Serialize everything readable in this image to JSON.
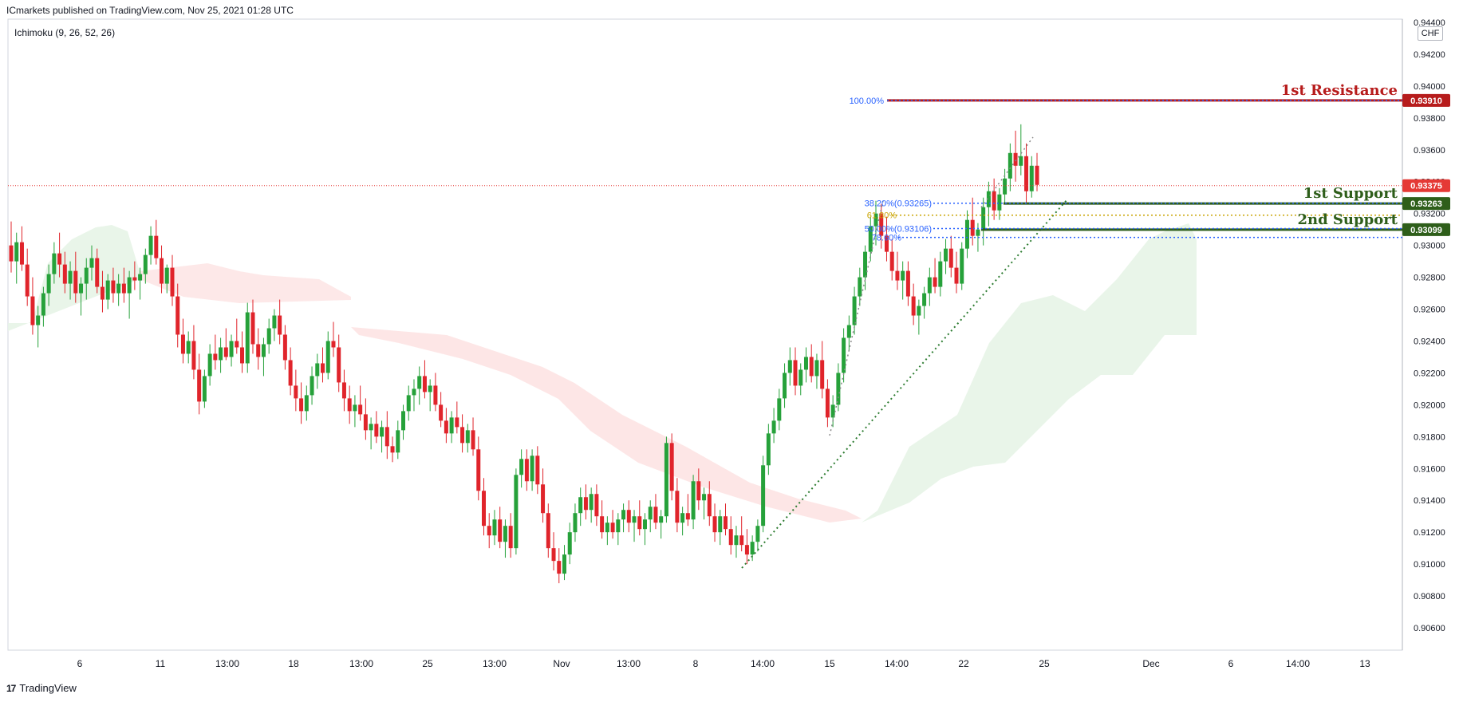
{
  "header": {
    "published": "ICmarkets published on TradingView.com, Nov 25, 2021 01:28 UTC"
  },
  "indicator": {
    "label": "Ichimoku (9, 26, 52, 26)"
  },
  "currency_button": "CHF",
  "footer": {
    "logo": "17",
    "brand": "TradingView"
  },
  "colors": {
    "up": "#26a13a",
    "down": "#e0242b",
    "resistance": "#b71c1c",
    "support": "#2e5e1a",
    "fib": "#2962ff",
    "fib_618": "#c9a300",
    "kumo_bull": "#e7f4e7",
    "kumo_bear": "#fde2e2",
    "current_price": "#e53935"
  },
  "chart_data": {
    "type": "candlestick",
    "symbol_quote": "CHF",
    "ylim": [
      0.9046,
      0.9442
    ],
    "y_ticks": [
      "0.90600",
      "0.90800",
      "0.91000",
      "0.91200",
      "0.91400",
      "0.91600",
      "0.91800",
      "0.92000",
      "0.92200",
      "0.92400",
      "0.92600",
      "0.92800",
      "0.93000",
      "0.93200",
      "0.93400",
      "0.93600",
      "0.93800",
      "0.94000",
      "0.94200",
      "0.94400"
    ],
    "x_ticks": [
      "6",
      "11",
      "13:00",
      "18",
      "13:00",
      "25",
      "13:00",
      "Nov",
      "13:00",
      "8",
      "14:00",
      "15",
      "14:00",
      "22",
      "25",
      "Dec",
      "6",
      "14:00",
      "13"
    ],
    "levels": [
      {
        "name": "1st Resistance",
        "price": 0.9391,
        "label": "0.93910",
        "kind": "resistance"
      },
      {
        "name": "1st Support",
        "price": 0.93263,
        "label": "0.93263",
        "kind": "support"
      },
      {
        "name": "2nd Support",
        "price": 0.93099,
        "label": "0.93099",
        "kind": "support"
      }
    ],
    "current_price": {
      "value": 0.93375,
      "label": "0.93375"
    },
    "fib_levels": [
      {
        "label": "100.00%",
        "price": 0.9391
      },
      {
        "label": "38.20%(0.93265)",
        "price": 0.93265
      },
      {
        "label": "61.80%",
        "price": 0.9319
      },
      {
        "label": "50.00%(0.93106)",
        "price": 0.93106
      },
      {
        "label": "78.60%",
        "price": 0.9305
      }
    ],
    "candles": [
      [
        0.93,
        0.9315,
        0.9283,
        0.929
      ],
      [
        0.929,
        0.9308,
        0.9276,
        0.9302
      ],
      [
        0.9302,
        0.9312,
        0.9284,
        0.9288
      ],
      [
        0.9288,
        0.9298,
        0.9262,
        0.9268
      ],
      [
        0.9268,
        0.928,
        0.9244,
        0.925
      ],
      [
        0.925,
        0.9262,
        0.9236,
        0.9256
      ],
      [
        0.9256,
        0.9274,
        0.9249,
        0.927
      ],
      [
        0.927,
        0.9288,
        0.9262,
        0.9282
      ],
      [
        0.9282,
        0.9302,
        0.9276,
        0.9295
      ],
      [
        0.9295,
        0.9308,
        0.928,
        0.9288
      ],
      [
        0.9288,
        0.9296,
        0.927,
        0.9276
      ],
      [
        0.9276,
        0.929,
        0.9266,
        0.9284
      ],
      [
        0.9284,
        0.9296,
        0.9264,
        0.927
      ],
      [
        0.927,
        0.928,
        0.9256,
        0.9276
      ],
      [
        0.9276,
        0.9292,
        0.9266,
        0.9286
      ],
      [
        0.9286,
        0.93,
        0.9278,
        0.9292
      ],
      [
        0.9292,
        0.9298,
        0.927,
        0.9274
      ],
      [
        0.9274,
        0.9284,
        0.9258,
        0.9266
      ],
      [
        0.9266,
        0.9282,
        0.926,
        0.9278
      ],
      [
        0.9278,
        0.9286,
        0.9264,
        0.927
      ],
      [
        0.927,
        0.9282,
        0.9262,
        0.9276
      ],
      [
        0.9276,
        0.9286,
        0.9264,
        0.927
      ],
      [
        0.927,
        0.9284,
        0.9254,
        0.928
      ],
      [
        0.928,
        0.929,
        0.9272,
        0.9278
      ],
      [
        0.9278,
        0.9286,
        0.9266,
        0.9282
      ],
      [
        0.9282,
        0.9298,
        0.9276,
        0.9294
      ],
      [
        0.9294,
        0.9312,
        0.9288,
        0.9306
      ],
      [
        0.9306,
        0.9316,
        0.9288,
        0.9292
      ],
      [
        0.9292,
        0.93,
        0.927,
        0.9276
      ],
      [
        0.9276,
        0.9288,
        0.927,
        0.9286
      ],
      [
        0.9286,
        0.9294,
        0.9262,
        0.9268
      ],
      [
        0.9268,
        0.9276,
        0.9236,
        0.9244
      ],
      [
        0.9244,
        0.9254,
        0.9226,
        0.9232
      ],
      [
        0.9232,
        0.9246,
        0.9226,
        0.924
      ],
      [
        0.924,
        0.925,
        0.9216,
        0.9222
      ],
      [
        0.9222,
        0.9232,
        0.9194,
        0.9202
      ],
      [
        0.9202,
        0.9222,
        0.9198,
        0.9218
      ],
      [
        0.9218,
        0.9238,
        0.9212,
        0.9232
      ],
      [
        0.9232,
        0.9244,
        0.9222,
        0.9228
      ],
      [
        0.9228,
        0.9242,
        0.922,
        0.9236
      ],
      [
        0.9236,
        0.9248,
        0.9228,
        0.923
      ],
      [
        0.923,
        0.9244,
        0.9224,
        0.924
      ],
      [
        0.924,
        0.9254,
        0.9232,
        0.9236
      ],
      [
        0.9236,
        0.9246,
        0.922,
        0.9226
      ],
      [
        0.9226,
        0.9264,
        0.922,
        0.9258
      ],
      [
        0.9258,
        0.9266,
        0.9232,
        0.9238
      ],
      [
        0.9238,
        0.9248,
        0.9222,
        0.923
      ],
      [
        0.923,
        0.9242,
        0.9218,
        0.9238
      ],
      [
        0.9238,
        0.9254,
        0.9232,
        0.9248
      ],
      [
        0.9248,
        0.926,
        0.924,
        0.9256
      ],
      [
        0.9256,
        0.9266,
        0.9238,
        0.9244
      ],
      [
        0.9244,
        0.925,
        0.9222,
        0.9228
      ],
      [
        0.9228,
        0.9236,
        0.9206,
        0.9212
      ],
      [
        0.9212,
        0.9222,
        0.9196,
        0.9204
      ],
      [
        0.9204,
        0.9214,
        0.9188,
        0.9196
      ],
      [
        0.9196,
        0.9212,
        0.919,
        0.9206
      ],
      [
        0.9206,
        0.9224,
        0.92,
        0.9218
      ],
      [
        0.9218,
        0.9232,
        0.921,
        0.9226
      ],
      [
        0.9226,
        0.9236,
        0.9214,
        0.922
      ],
      [
        0.922,
        0.9246,
        0.9216,
        0.924
      ],
      [
        0.924,
        0.9252,
        0.923,
        0.9236
      ],
      [
        0.9236,
        0.9244,
        0.9208,
        0.9214
      ],
      [
        0.9214,
        0.9222,
        0.9196,
        0.9204
      ],
      [
        0.9204,
        0.9212,
        0.9188,
        0.9196
      ],
      [
        0.9196,
        0.9206,
        0.9186,
        0.92
      ],
      [
        0.92,
        0.9212,
        0.919,
        0.9194
      ],
      [
        0.9194,
        0.9204,
        0.9178,
        0.9184
      ],
      [
        0.9184,
        0.9192,
        0.9172,
        0.9188
      ],
      [
        0.9188,
        0.9196,
        0.9176,
        0.918
      ],
      [
        0.918,
        0.919,
        0.917,
        0.9186
      ],
      [
        0.9186,
        0.9196,
        0.9166,
        0.9174
      ],
      [
        0.9174,
        0.918,
        0.9164,
        0.917
      ],
      [
        0.917,
        0.919,
        0.9166,
        0.9184
      ],
      [
        0.9184,
        0.92,
        0.9178,
        0.9196
      ],
      [
        0.9196,
        0.9212,
        0.919,
        0.9206
      ],
      [
        0.9206,
        0.9216,
        0.9196,
        0.921
      ],
      [
        0.921,
        0.9224,
        0.92,
        0.9218
      ],
      [
        0.9218,
        0.9228,
        0.9204,
        0.9208
      ],
      [
        0.9208,
        0.9216,
        0.9196,
        0.9212
      ],
      [
        0.9212,
        0.922,
        0.9196,
        0.92
      ],
      [
        0.92,
        0.9208,
        0.9186,
        0.919
      ],
      [
        0.919,
        0.9198,
        0.9176,
        0.9182
      ],
      [
        0.9182,
        0.9196,
        0.9176,
        0.9192
      ],
      [
        0.9192,
        0.9202,
        0.9182,
        0.9186
      ],
      [
        0.9186,
        0.9194,
        0.917,
        0.9176
      ],
      [
        0.9176,
        0.9188,
        0.917,
        0.9184
      ],
      [
        0.9184,
        0.9192,
        0.9168,
        0.9172
      ],
      [
        0.9172,
        0.918,
        0.914,
        0.9146
      ],
      [
        0.9146,
        0.9154,
        0.9118,
        0.9124
      ],
      [
        0.9124,
        0.9132,
        0.911,
        0.9118
      ],
      [
        0.9118,
        0.9134,
        0.9112,
        0.9128
      ],
      [
        0.9128,
        0.9136,
        0.911,
        0.9114
      ],
      [
        0.9114,
        0.9128,
        0.9104,
        0.9124
      ],
      [
        0.9124,
        0.9132,
        0.9104,
        0.911
      ],
      [
        0.911,
        0.916,
        0.9106,
        0.9156
      ],
      [
        0.9156,
        0.9172,
        0.9148,
        0.9166
      ],
      [
        0.9166,
        0.9172,
        0.9146,
        0.9152
      ],
      [
        0.9152,
        0.9172,
        0.9146,
        0.9168
      ],
      [
        0.9168,
        0.9174,
        0.9144,
        0.915
      ],
      [
        0.915,
        0.916,
        0.9126,
        0.9132
      ],
      [
        0.9132,
        0.9138,
        0.9104,
        0.911
      ],
      [
        0.911,
        0.912,
        0.9096,
        0.9102
      ],
      [
        0.9102,
        0.911,
        0.9088,
        0.9094
      ],
      [
        0.9094,
        0.9112,
        0.909,
        0.9106
      ],
      [
        0.9106,
        0.9126,
        0.91,
        0.912
      ],
      [
        0.912,
        0.9138,
        0.9114,
        0.9132
      ],
      [
        0.9132,
        0.9148,
        0.9124,
        0.9142
      ],
      [
        0.9142,
        0.915,
        0.9128,
        0.9134
      ],
      [
        0.9134,
        0.9148,
        0.9126,
        0.9144
      ],
      [
        0.9144,
        0.915,
        0.9124,
        0.913
      ],
      [
        0.913,
        0.914,
        0.9116,
        0.912
      ],
      [
        0.912,
        0.913,
        0.9112,
        0.9126
      ],
      [
        0.9126,
        0.9134,
        0.9116,
        0.912
      ],
      [
        0.912,
        0.9132,
        0.9112,
        0.9128
      ],
      [
        0.9128,
        0.9138,
        0.912,
        0.9134
      ],
      [
        0.9134,
        0.914,
        0.912,
        0.9126
      ],
      [
        0.9126,
        0.9134,
        0.9114,
        0.913
      ],
      [
        0.913,
        0.914,
        0.9118,
        0.9122
      ],
      [
        0.9122,
        0.9132,
        0.9112,
        0.9128
      ],
      [
        0.9128,
        0.914,
        0.912,
        0.9136
      ],
      [
        0.9136,
        0.9144,
        0.9122,
        0.9126
      ],
      [
        0.9126,
        0.9134,
        0.9116,
        0.913
      ],
      [
        0.913,
        0.918,
        0.9126,
        0.9176
      ],
      [
        0.9176,
        0.9182,
        0.914,
        0.9146
      ],
      [
        0.9146,
        0.9154,
        0.912,
        0.9126
      ],
      [
        0.9126,
        0.9136,
        0.9118,
        0.9132
      ],
      [
        0.9132,
        0.9144,
        0.9124,
        0.9128
      ],
      [
        0.9128,
        0.9156,
        0.9122,
        0.9152
      ],
      [
        0.9152,
        0.916,
        0.9134,
        0.914
      ],
      [
        0.914,
        0.9148,
        0.9128,
        0.9144
      ],
      [
        0.9144,
        0.9152,
        0.9124,
        0.913
      ],
      [
        0.913,
        0.9138,
        0.9114,
        0.912
      ],
      [
        0.912,
        0.9134,
        0.9112,
        0.913
      ],
      [
        0.913,
        0.9138,
        0.9118,
        0.9122
      ],
      [
        0.9122,
        0.913,
        0.9106,
        0.9112
      ],
      [
        0.9112,
        0.9124,
        0.9104,
        0.9118
      ],
      [
        0.9118,
        0.913,
        0.9108,
        0.9112
      ],
      [
        0.9112,
        0.9122,
        0.91,
        0.9106
      ],
      [
        0.9106,
        0.9118,
        0.9102,
        0.9114
      ],
      [
        0.9114,
        0.9128,
        0.9108,
        0.9124
      ],
      [
        0.9124,
        0.9168,
        0.912,
        0.9162
      ],
      [
        0.9162,
        0.9188,
        0.9156,
        0.9182
      ],
      [
        0.9182,
        0.9198,
        0.9176,
        0.919
      ],
      [
        0.919,
        0.921,
        0.9184,
        0.9204
      ],
      [
        0.9204,
        0.9226,
        0.9198,
        0.922
      ],
      [
        0.922,
        0.9236,
        0.9212,
        0.9228
      ],
      [
        0.9228,
        0.9236,
        0.9206,
        0.9212
      ],
      [
        0.9212,
        0.9226,
        0.9206,
        0.9222
      ],
      [
        0.9222,
        0.9236,
        0.9214,
        0.923
      ],
      [
        0.923,
        0.9238,
        0.9214,
        0.9218
      ],
      [
        0.9218,
        0.9232,
        0.921,
        0.9228
      ],
      [
        0.9228,
        0.924,
        0.9204,
        0.921
      ],
      [
        0.921,
        0.9216,
        0.9186,
        0.9192
      ],
      [
        0.9192,
        0.9206,
        0.9186,
        0.92
      ],
      [
        0.92,
        0.9226,
        0.9196,
        0.922
      ],
      [
        0.922,
        0.9248,
        0.9214,
        0.9242
      ],
      [
        0.9242,
        0.9256,
        0.9234,
        0.925
      ],
      [
        0.925,
        0.9274,
        0.9244,
        0.9268
      ],
      [
        0.9268,
        0.9286,
        0.9262,
        0.928
      ],
      [
        0.928,
        0.93,
        0.9272,
        0.9296
      ],
      [
        0.9296,
        0.9318,
        0.929,
        0.9312
      ],
      [
        0.9312,
        0.9328,
        0.93,
        0.932
      ],
      [
        0.932,
        0.9326,
        0.9298,
        0.9306
      ],
      [
        0.9306,
        0.9318,
        0.929,
        0.9296
      ],
      [
        0.9296,
        0.9304,
        0.9278,
        0.9284
      ],
      [
        0.9284,
        0.9296,
        0.9272,
        0.9278
      ],
      [
        0.9278,
        0.929,
        0.9266,
        0.9284
      ],
      [
        0.9284,
        0.929,
        0.9262,
        0.9268
      ],
      [
        0.9268,
        0.9276,
        0.925,
        0.9256
      ],
      [
        0.9256,
        0.9266,
        0.9244,
        0.9262
      ],
      [
        0.9262,
        0.9274,
        0.9254,
        0.927
      ],
      [
        0.927,
        0.9286,
        0.9262,
        0.928
      ],
      [
        0.928,
        0.9292,
        0.927,
        0.9274
      ],
      [
        0.9274,
        0.9296,
        0.9268,
        0.929
      ],
      [
        0.929,
        0.9304,
        0.9282,
        0.9298
      ],
      [
        0.9298,
        0.9306,
        0.928,
        0.9286
      ],
      [
        0.9286,
        0.9296,
        0.927,
        0.9276
      ],
      [
        0.9276,
        0.9302,
        0.9272,
        0.9298
      ],
      [
        0.9298,
        0.9322,
        0.9292,
        0.9316
      ],
      [
        0.9316,
        0.933,
        0.93,
        0.9306
      ],
      [
        0.9306,
        0.9314,
        0.9296,
        0.931
      ],
      [
        0.931,
        0.933,
        0.93,
        0.9324
      ],
      [
        0.9324,
        0.934,
        0.9312,
        0.9334
      ],
      [
        0.9334,
        0.9342,
        0.9316,
        0.9322
      ],
      [
        0.9322,
        0.9336,
        0.9316,
        0.9332
      ],
      [
        0.9332,
        0.9348,
        0.9326,
        0.9342
      ],
      [
        0.9342,
        0.9364,
        0.9334,
        0.9358
      ],
      [
        0.9358,
        0.9372,
        0.934,
        0.935
      ],
      [
        0.935,
        0.9376,
        0.9344,
        0.9356
      ],
      [
        0.9356,
        0.9364,
        0.9326,
        0.9334
      ],
      [
        0.9334,
        0.9356,
        0.933,
        0.935
      ],
      [
        0.935,
        0.9358,
        0.9334,
        0.9338
      ]
    ]
  }
}
